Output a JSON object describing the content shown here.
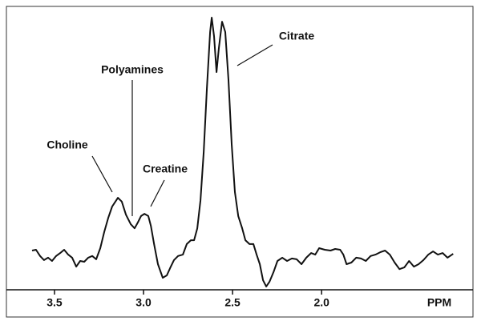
{
  "chart_data": {
    "type": "line",
    "xlabel": "PPM",
    "annotations": [
      "Choline",
      "Polyamines",
      "Creatine",
      "Citrate"
    ],
    "x": [
      3.626,
      3.604,
      3.581,
      3.559,
      3.536,
      3.514,
      3.491,
      3.468,
      3.446,
      3.423,
      3.401,
      3.378,
      3.356,
      3.333,
      3.311,
      3.288,
      3.266,
      3.243,
      3.221,
      3.198,
      3.176,
      3.144,
      3.122,
      3.099,
      3.072,
      3.05,
      3.032,
      3.014,
      2.995,
      2.973,
      2.959,
      2.941,
      2.919,
      2.892,
      2.869,
      2.851,
      2.829,
      2.806,
      2.779,
      2.757,
      2.734,
      2.716,
      2.698,
      2.68,
      2.662,
      2.644,
      2.626,
      2.617,
      2.604,
      2.59,
      2.577,
      2.559,
      2.541,
      2.523,
      2.505,
      2.487,
      2.468,
      2.446,
      2.428,
      2.405,
      2.383,
      2.365,
      2.347,
      2.329,
      2.311,
      2.293,
      2.27,
      2.248,
      2.221,
      2.194,
      2.167,
      2.14,
      2.113,
      2.086,
      2.059,
      2.036,
      2.014,
      1.982,
      1.95,
      1.924,
      1.896,
      1.878,
      1.86,
      1.833,
      1.806,
      1.779,
      1.752,
      1.725,
      1.698,
      1.671,
      1.644,
      1.617,
      1.59,
      1.563,
      1.536,
      1.509,
      1.482,
      1.455,
      1.428,
      1.401,
      1.374,
      1.347,
      1.32,
      1.293,
      1.261
    ],
    "values": [
      14.4,
      14.7,
      12.4,
      10.9,
      11.8,
      10.6,
      12.4,
      13.5,
      14.7,
      12.9,
      11.8,
      8.5,
      10.6,
      10.3,
      11.8,
      12.4,
      11.2,
      15.3,
      21.2,
      26.5,
      30.6,
      33.8,
      32.4,
      27.6,
      24.1,
      22.6,
      24.7,
      27.1,
      27.9,
      27.1,
      23.5,
      16.8,
      9.4,
      4.4,
      5.3,
      7.9,
      10.9,
      12.4,
      12.9,
      16.8,
      18.2,
      18.2,
      22.6,
      32.9,
      50.6,
      74.1,
      94.7,
      100,
      93.2,
      80,
      88.8,
      98.5,
      94.7,
      77.1,
      53.5,
      35.9,
      27.1,
      22.6,
      18.2,
      16.8,
      16.8,
      12.9,
      9.4,
      3.5,
      1.2,
      2.9,
      6.5,
      10.6,
      11.8,
      10.6,
      11.5,
      11.2,
      9.4,
      11.8,
      13.5,
      12.9,
      15.3,
      14.7,
      14.4,
      15,
      14.7,
      12.9,
      9.4,
      10,
      11.8,
      11.5,
      10.6,
      12.4,
      12.9,
      13.8,
      14.4,
      12.9,
      10,
      7.6,
      8.2,
      10.6,
      8.5,
      9.4,
      10.9,
      12.9,
      14.1,
      12.9,
      13.5,
      11.8,
      13.2
    ],
    "color": "#111111",
    "xlim": [
      3.77,
      1.15
    ],
    "ylim": [
      0,
      100
    ],
    "xticks": [
      3.5,
      {
        "value": 3,
        "label": "3.0"
      },
      2.5,
      {
        "value": 2,
        "label": "2.0"
      }
    ]
  }
}
